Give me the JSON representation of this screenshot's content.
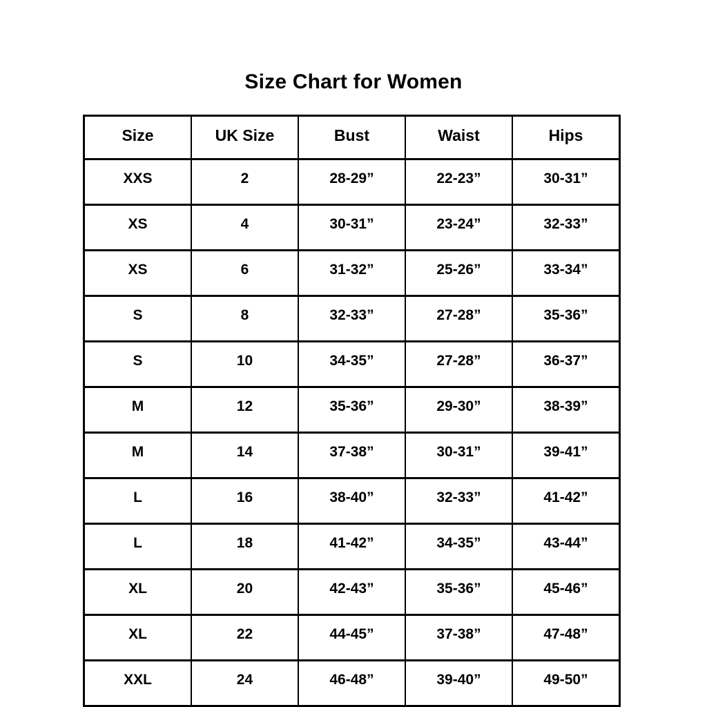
{
  "title": "Size Chart for Women",
  "colors": {
    "background": "#ffffff",
    "border": "#000000",
    "text": "#000000"
  },
  "chart_data": {
    "type": "table",
    "title": "Size Chart for Women",
    "columns": [
      "Size",
      "UK Size",
      "Bust",
      "Waist",
      "Hips"
    ],
    "rows": [
      [
        "XXS",
        "2",
        "28-29”",
        "22-23”",
        "30-31”"
      ],
      [
        "XS",
        "4",
        "30-31”",
        "23-24”",
        "32-33”"
      ],
      [
        "XS",
        "6",
        "31-32”",
        "25-26”",
        "33-34”"
      ],
      [
        "S",
        "8",
        "32-33”",
        "27-28”",
        "35-36”"
      ],
      [
        "S",
        "10",
        "34-35”",
        "27-28”",
        "36-37”"
      ],
      [
        "M",
        "12",
        "35-36”",
        "29-30”",
        "38-39”"
      ],
      [
        "M",
        "14",
        "37-38”",
        "30-31”",
        "39-41”"
      ],
      [
        "L",
        "16",
        "38-40”",
        "32-33”",
        "41-42”"
      ],
      [
        "L",
        "18",
        "41-42”",
        "34-35”",
        "43-44”"
      ],
      [
        "XL",
        "20",
        "42-43”",
        "35-36”",
        "45-46”"
      ],
      [
        "XL",
        "22",
        "44-45”",
        "37-38”",
        "47-48”"
      ],
      [
        "XXL",
        "24",
        "46-48”",
        "39-40”",
        "49-50”"
      ]
    ]
  }
}
